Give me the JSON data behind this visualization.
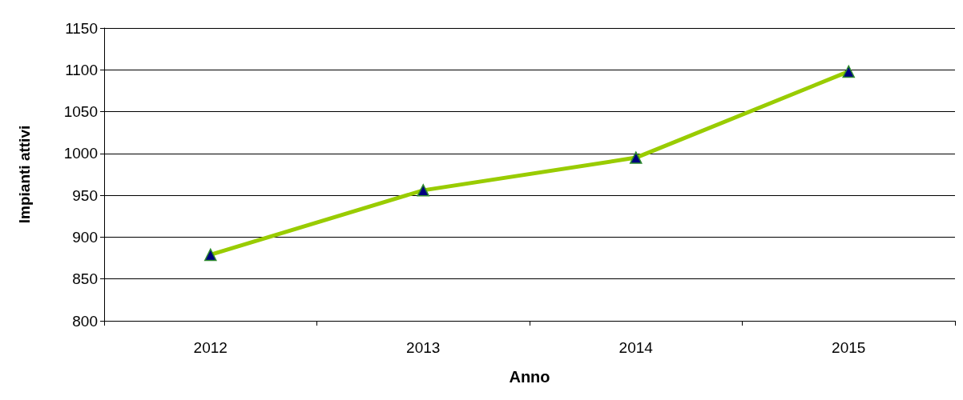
{
  "chart_data": {
    "type": "line",
    "xlabel": "Anno",
    "ylabel": "Impianti attivi",
    "categories": [
      "2012",
      "2013",
      "2014",
      "2015"
    ],
    "series": [
      {
        "color": "#99cc00",
        "values": [
          879,
          956,
          995,
          1098
        ]
      }
    ],
    "ylim": [
      800,
      1150
    ],
    "yticks": [
      800,
      850,
      900,
      950,
      1000,
      1050,
      1100,
      1150
    ],
    "grid": "y",
    "marker": "triangle"
  }
}
